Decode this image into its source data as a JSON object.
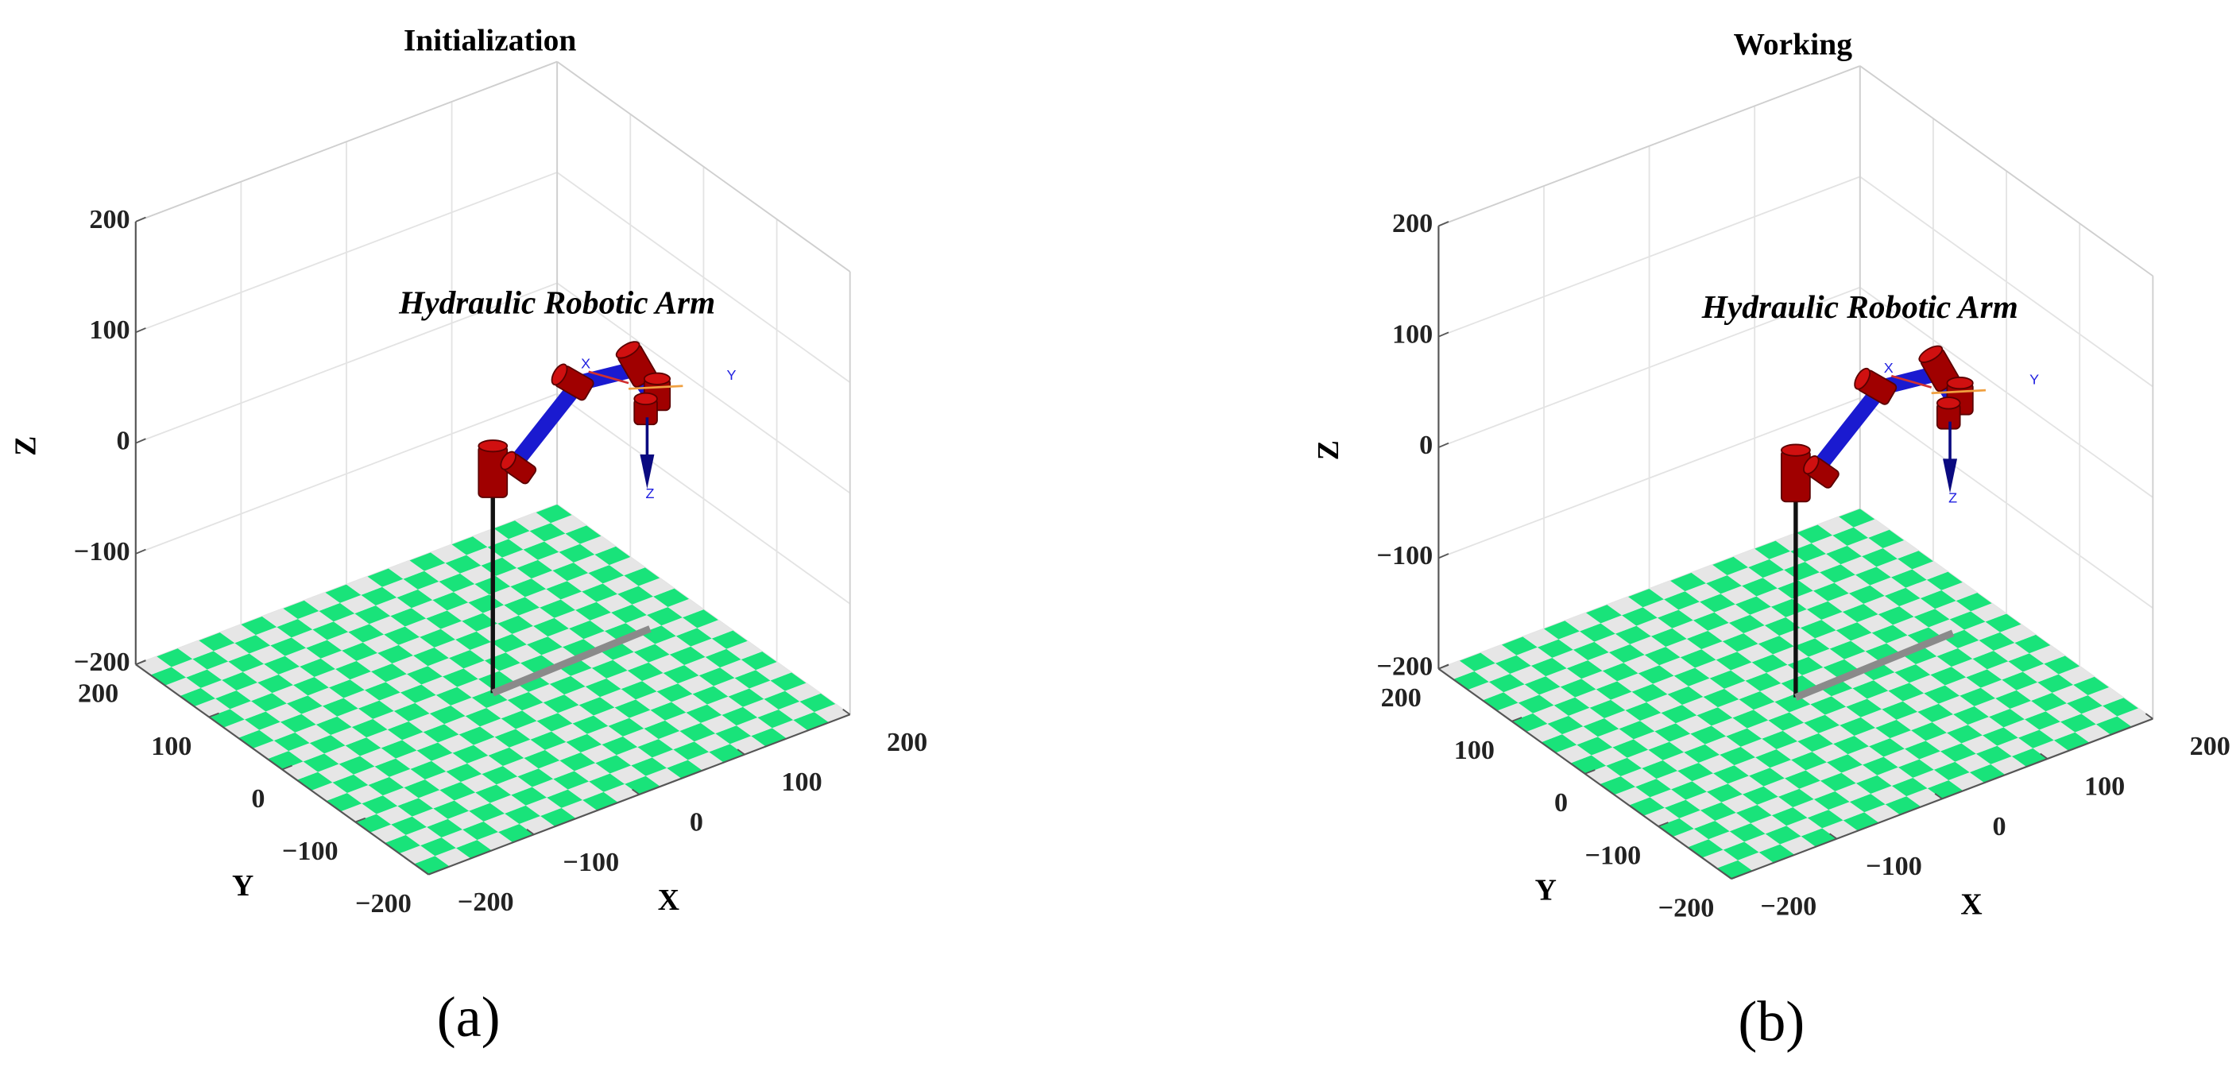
{
  "chart_data": [
    {
      "type": "robot-3d",
      "title": "Initialization",
      "annotation": "Hydraulic Robotic Arm",
      "caption": "(a)",
      "xlabel": "X",
      "ylabel": "Y",
      "zlabel": "Z",
      "frame_labels": [
        "X",
        "Y",
        "Z"
      ],
      "xlim": [
        -200,
        200
      ],
      "ylim": [
        -200,
        200
      ],
      "zlim": [
        -200,
        200
      ],
      "xticks": [
        {
          "value": -200,
          "label": "−200"
        },
        {
          "value": -100,
          "label": "−100"
        },
        0,
        100,
        200
      ],
      "yticks": [
        {
          "value": -200,
          "label": "−200"
        },
        {
          "value": -100,
          "label": "−100"
        },
        0,
        100,
        200
      ],
      "zticks": [
        {
          "value": -200,
          "label": "−200"
        },
        {
          "value": -100,
          "label": "−100"
        },
        0,
        100,
        200
      ],
      "grid": true
    },
    {
      "type": "robot-3d",
      "title": "Working",
      "annotation": "Hydraulic Robotic Arm",
      "caption": "(b)",
      "xlabel": "X",
      "ylabel": "Y",
      "zlabel": "Z",
      "frame_labels": [
        "X",
        "Y",
        "Z"
      ],
      "xlim": [
        -200,
        200
      ],
      "ylim": [
        -200,
        200
      ],
      "zlim": [
        -200,
        200
      ],
      "xticks": [
        {
          "value": -200,
          "label": "−200"
        },
        {
          "value": -100,
          "label": "−100"
        },
        0,
        100,
        200
      ],
      "yticks": [
        {
          "value": -200,
          "label": "−200"
        },
        {
          "value": -100,
          "label": "−100"
        },
        0,
        100,
        200
      ],
      "zticks": [
        {
          "value": -200,
          "label": "−200"
        },
        {
          "value": -100,
          "label": "−100"
        },
        0,
        100,
        200
      ],
      "grid": true
    }
  ]
}
